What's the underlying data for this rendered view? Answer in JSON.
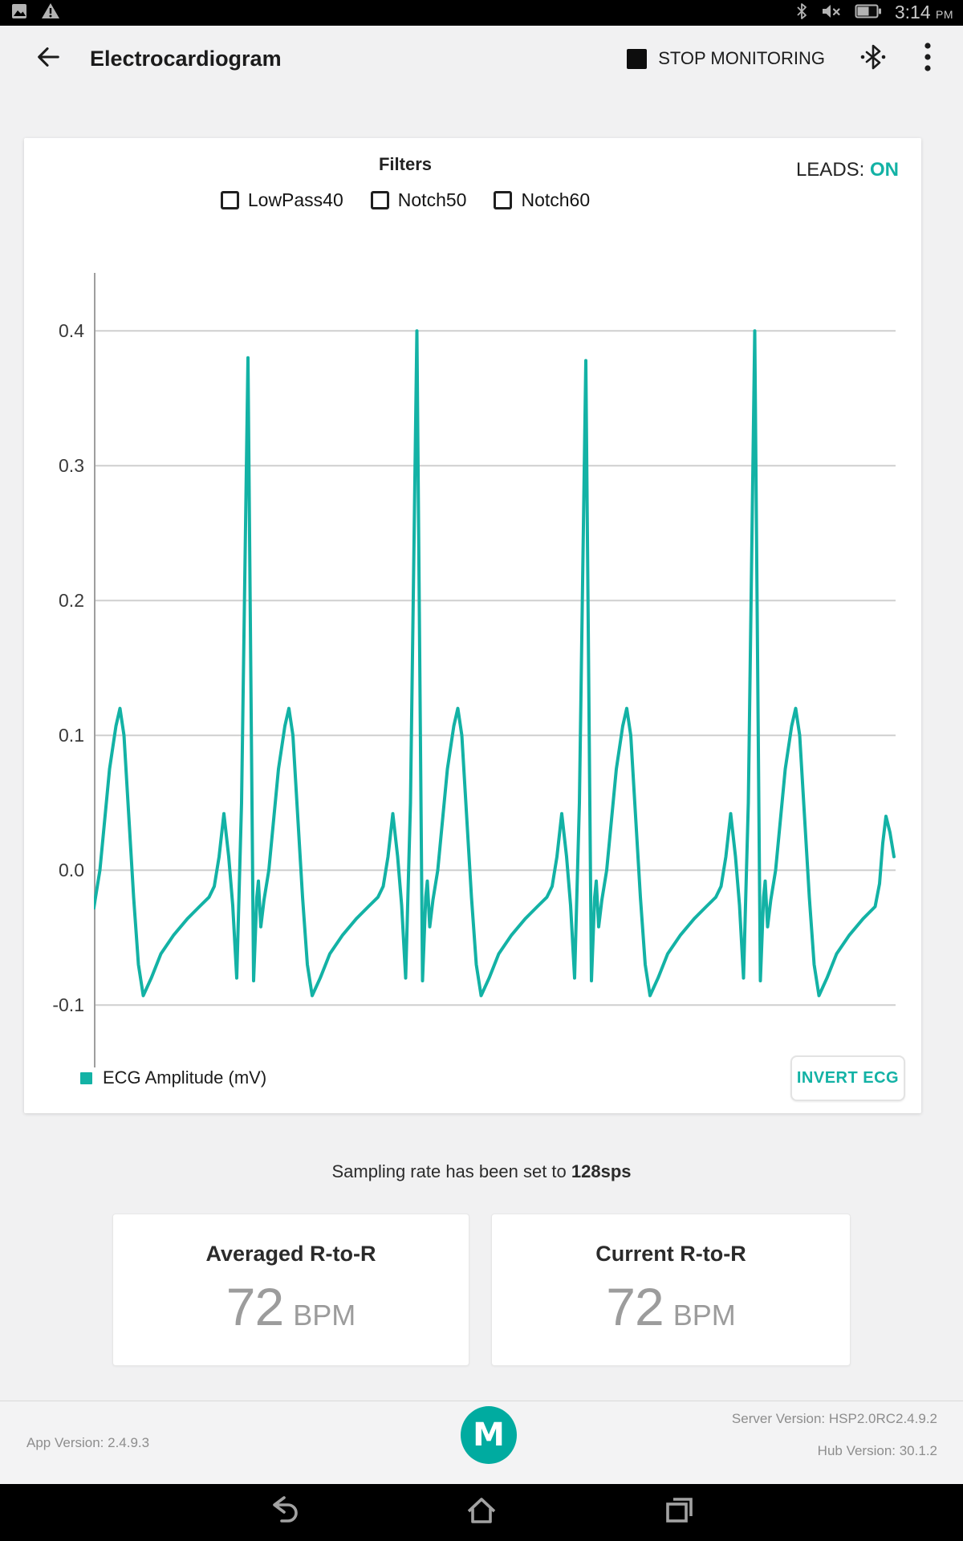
{
  "colors": {
    "accent": "#13b2a5",
    "logo": "#00aba0",
    "line": "#13b2a5"
  },
  "status_bar": {
    "time": "3:14",
    "time_suffix": "PM",
    "left_icons": [
      "screenshot-icon",
      "warning-icon"
    ],
    "right_icons": [
      "bluetooth-icon",
      "volume-muted-icon",
      "battery-icon"
    ]
  },
  "app_bar": {
    "title": "Electrocardiogram",
    "stop_label": "STOP MONITORING"
  },
  "chart_card": {
    "filters_title": "Filters",
    "filters": [
      {
        "label": "LowPass40",
        "checked": false
      },
      {
        "label": "Notch50",
        "checked": false
      },
      {
        "label": "Notch60",
        "checked": false
      }
    ],
    "leads_label": "LEADS:",
    "leads_value": "ON",
    "legend": "ECG Amplitude (mV)",
    "invert_label": "INVERT ECG"
  },
  "chart_data": {
    "type": "line",
    "title": "",
    "series": [
      {
        "name": "ECG Amplitude (mV)"
      }
    ],
    "ylabel": "ECG Amplitude (mV)",
    "xlabel": "",
    "y_ticks": [
      0.4,
      0.3,
      0.2,
      0.1,
      0.0,
      -0.1
    ],
    "ylim": [
      -0.146,
      0.443
    ],
    "grid": true,
    "legend_position": "bottom-left",
    "line_color": "#13b2a5",
    "r_peak_values_mV": [
      0.38,
      0.4,
      0.378,
      0.4
    ],
    "t_wave_peak_mV": 0.12,
    "p_wave_peak_mV": 0.042,
    "baseline_dip_mV": -0.093,
    "points": [
      [
        0,
        -0.028
      ],
      [
        1.5,
        -0.022
      ],
      [
        7.5,
        0
      ],
      [
        19.5,
        0.075
      ],
      [
        27.5,
        0.107
      ],
      [
        32.5,
        0.12
      ],
      [
        37.5,
        0.1
      ],
      [
        43.5,
        0.04
      ],
      [
        49.5,
        -0.02
      ],
      [
        55.5,
        -0.07
      ],
      [
        61.5,
        -0.093
      ],
      [
        71.5,
        -0.08
      ],
      [
        83.5,
        -0.062
      ],
      [
        99.5,
        -0.048
      ],
      [
        116.5,
        -0.036
      ],
      [
        131.5,
        -0.027
      ],
      [
        143.5,
        -0.02
      ],
      [
        150,
        -0.012
      ],
      [
        156,
        0.01
      ],
      [
        162,
        0.042
      ],
      [
        168,
        0.01
      ],
      [
        173,
        -0.026
      ],
      [
        178,
        -0.08
      ],
      [
        184,
        0.05
      ],
      [
        192,
        0.38
      ],
      [
        199,
        -0.082
      ],
      [
        203,
        -0.02
      ],
      [
        205,
        -0.008
      ],
      [
        208,
        -0.042
      ],
      [
        212,
        -0.022
      ],
      [
        218,
        0
      ],
      [
        230,
        0.075
      ],
      [
        238,
        0.107
      ],
      [
        243,
        0.12
      ],
      [
        248,
        0.1
      ],
      [
        254,
        0.04
      ],
      [
        260,
        -0.02
      ],
      [
        266,
        -0.07
      ],
      [
        272,
        -0.093
      ],
      [
        282,
        -0.08
      ],
      [
        294,
        -0.062
      ],
      [
        310,
        -0.048
      ],
      [
        327,
        -0.036
      ],
      [
        342,
        -0.027
      ],
      [
        354,
        -0.02
      ],
      [
        360.5,
        -0.012
      ],
      [
        366.5,
        0.01
      ],
      [
        372.5,
        0.042
      ],
      [
        378.5,
        0.01
      ],
      [
        383.5,
        -0.026
      ],
      [
        388.5,
        -0.08
      ],
      [
        394.5,
        0.05
      ],
      [
        402.5,
        0.4
      ],
      [
        409.5,
        -0.082
      ],
      [
        413.5,
        -0.02
      ],
      [
        415.5,
        -0.008
      ],
      [
        418.5,
        -0.042
      ],
      [
        422.5,
        -0.022
      ],
      [
        428.5,
        0
      ],
      [
        440.5,
        0.075
      ],
      [
        448.5,
        0.107
      ],
      [
        453.5,
        0.12
      ],
      [
        458.5,
        0.1
      ],
      [
        464.5,
        0.04
      ],
      [
        470.5,
        -0.02
      ],
      [
        476.5,
        -0.07
      ],
      [
        482.5,
        -0.093
      ],
      [
        492.5,
        -0.08
      ],
      [
        504.5,
        -0.062
      ],
      [
        520.5,
        -0.048
      ],
      [
        537.5,
        -0.036
      ],
      [
        552.5,
        -0.027
      ],
      [
        564.5,
        -0.02
      ],
      [
        571,
        -0.012
      ],
      [
        577,
        0.01
      ],
      [
        583,
        0.042
      ],
      [
        589,
        0.01
      ],
      [
        594,
        -0.026
      ],
      [
        599,
        -0.08
      ],
      [
        605,
        0.05
      ],
      [
        613,
        0.378
      ],
      [
        620,
        -0.082
      ],
      [
        624,
        -0.02
      ],
      [
        626,
        -0.008
      ],
      [
        629,
        -0.042
      ],
      [
        633,
        -0.022
      ],
      [
        639,
        0
      ],
      [
        651,
        0.075
      ],
      [
        659,
        0.107
      ],
      [
        664,
        0.12
      ],
      [
        669,
        0.1
      ],
      [
        675,
        0.04
      ],
      [
        681,
        -0.02
      ],
      [
        687,
        -0.07
      ],
      [
        693,
        -0.093
      ],
      [
        703,
        -0.08
      ],
      [
        715,
        -0.062
      ],
      [
        731,
        -0.048
      ],
      [
        748,
        -0.036
      ],
      [
        763,
        -0.027
      ],
      [
        775,
        -0.02
      ],
      [
        781.5,
        -0.012
      ],
      [
        787.5,
        0.01
      ],
      [
        793.5,
        0.042
      ],
      [
        799.5,
        0.01
      ],
      [
        804.5,
        -0.026
      ],
      [
        809.5,
        -0.08
      ],
      [
        815.5,
        0.05
      ],
      [
        823.5,
        0.4
      ],
      [
        830.5,
        -0.082
      ],
      [
        834.5,
        -0.02
      ],
      [
        836.5,
        -0.008
      ],
      [
        839.5,
        -0.042
      ],
      [
        843.5,
        -0.022
      ],
      [
        849.5,
        0
      ],
      [
        861.5,
        0.075
      ],
      [
        869.5,
        0.107
      ],
      [
        874.5,
        0.12
      ],
      [
        879.5,
        0.1
      ],
      [
        885.5,
        0.04
      ],
      [
        891.5,
        -0.02
      ],
      [
        897.5,
        -0.07
      ],
      [
        903.5,
        -0.093
      ],
      [
        913.5,
        -0.08
      ],
      [
        925.5,
        -0.062
      ],
      [
        941.5,
        -0.048
      ],
      [
        958.5,
        -0.036
      ],
      [
        973.5,
        -0.027
      ],
      [
        979,
        -0.01
      ],
      [
        983,
        0.02
      ],
      [
        987,
        0.04
      ],
      [
        992,
        0.028
      ],
      [
        997,
        0.01
      ]
    ]
  },
  "sampling_note": {
    "prefix": "Sampling rate has been set to ",
    "bold": "128sps"
  },
  "metrics": [
    {
      "title": "Averaged R-to-R",
      "value": "72",
      "unit": "BPM"
    },
    {
      "title": "Current R-to-R",
      "value": "72",
      "unit": "BPM"
    }
  ],
  "footer": {
    "app_version": "App Version: 2.4.9.3",
    "server_version": "Server Version: HSP2.0RC2.4.9.2",
    "hub_version": "Hub Version: 30.1.2",
    "logo_letter": "M"
  }
}
